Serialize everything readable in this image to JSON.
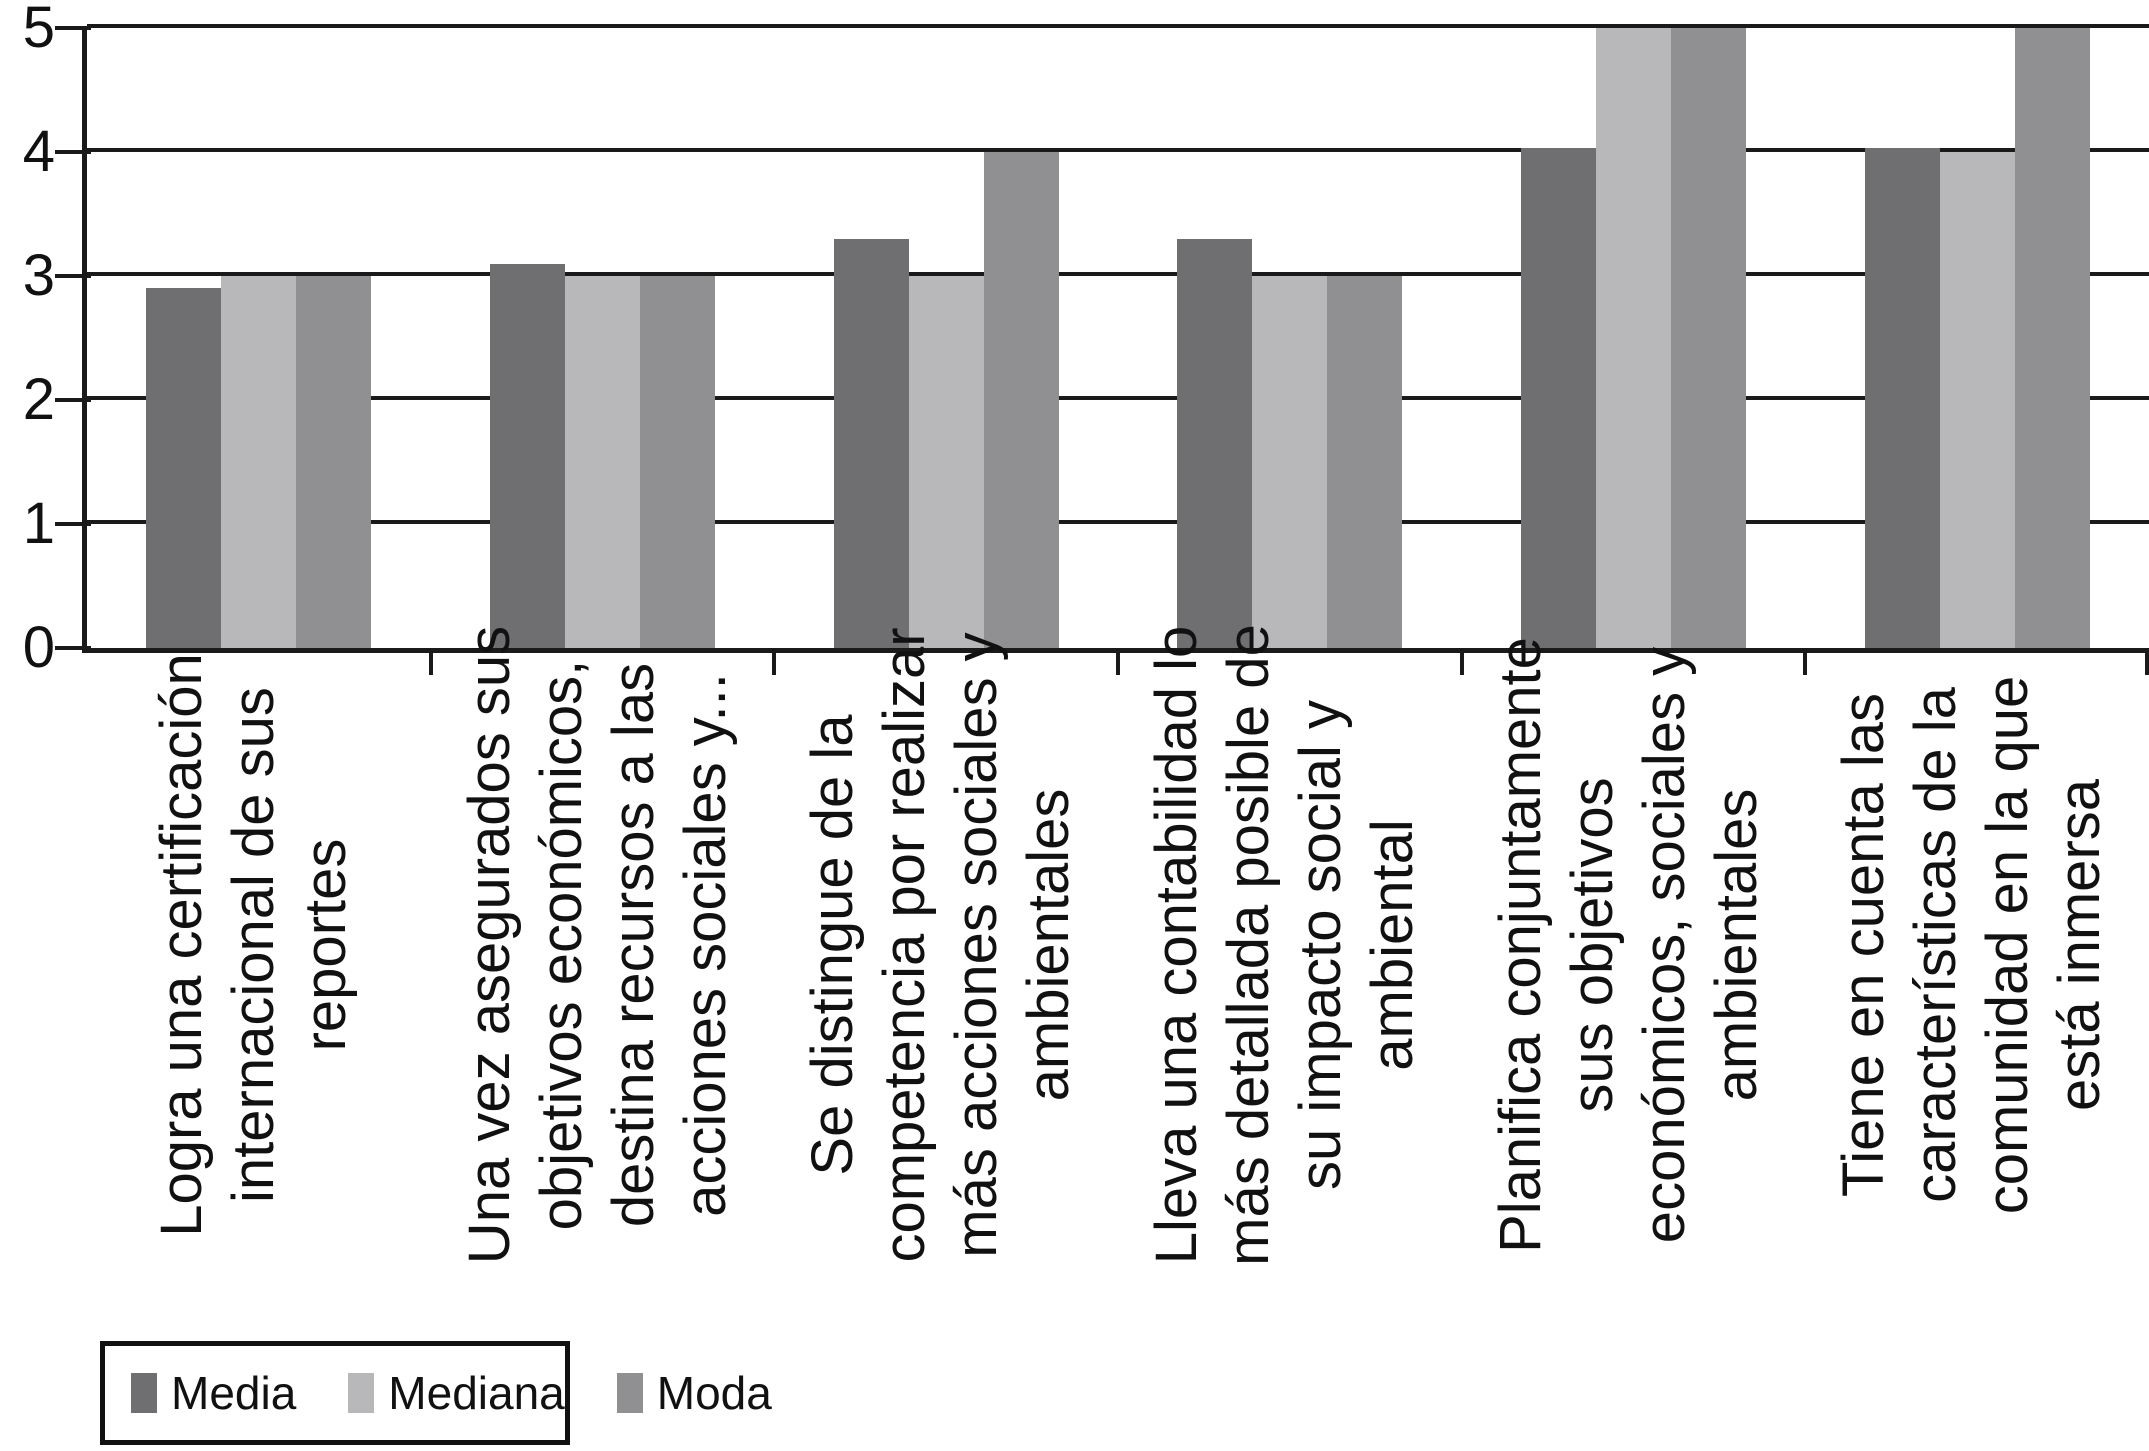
{
  "figure": {
    "background": "#ffffff",
    "text_color": "#111111",
    "axis_color": "#1a1a1a"
  },
  "chart_data": {
    "type": "bar",
    "title": "",
    "xlabel": "",
    "ylabel": "",
    "ylim": [
      0,
      5
    ],
    "yticks": [
      0,
      1,
      2,
      3,
      4,
      5
    ],
    "grid": "horizontal",
    "legend_position": "bottom-left",
    "categories": [
      "Logra una certificación internacional de sus reportes",
      "Una vez asegurados sus objetivos económicos, destina recursos a las acciones sociales y...",
      "Se distingue de la competencia por realizar más acciones sociales y ambientales",
      "Lleva una contabilidad lo más detallada posible de su impacto social y ambiental",
      "Planifica conjuntamente sus objetivos económicos, sociales y ambientales",
      "Tiene en cuenta las características de la comunidad en la que está inmersa"
    ],
    "category_lines": [
      "Logra una certificación\ninternacional de sus\nreportes",
      "Una vez asegurados sus\nobjetivos económicos,\ndestina recursos a las\nacciones sociales y...",
      "Se distingue de la\ncompetencia por realizar\nmás acciones sociales y\nambientales",
      "Lleva una contabilidad lo\nmás detallada posible de\nsu impacto social y\nambiental",
      "Planifica conjuntamente\nsus objetivos\neconómicos, sociales y\nambientales",
      "Tiene en cuenta las\ncaracterísticas de la\ncomunidad en la que\nestá inmersa"
    ],
    "series": [
      {
        "name": "Media",
        "color": "#6f6f71",
        "values": [
          2.9,
          3.1,
          3.3,
          3.3,
          4.03,
          4.03
        ]
      },
      {
        "name": "Mediana",
        "color": "#b8b8ba",
        "values": [
          3,
          3,
          3,
          3,
          5,
          4
        ]
      },
      {
        "name": "Moda",
        "color": "#909092",
        "values": [
          3,
          3,
          4,
          3,
          5,
          5
        ]
      }
    ]
  },
  "legend": {
    "items": [
      "Media",
      "Mediana",
      "Moda"
    ]
  }
}
